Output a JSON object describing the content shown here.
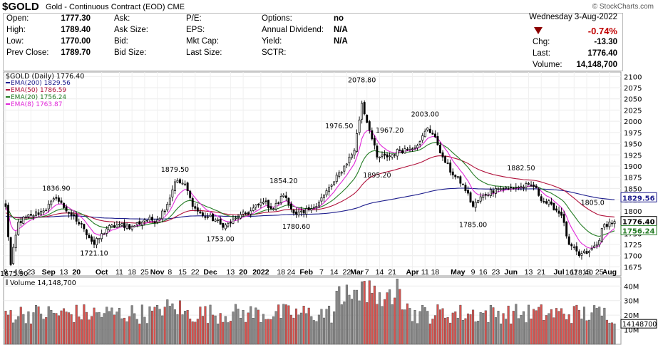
{
  "header": {
    "symbol": "$GOLD",
    "description": "Gold - Continuous Contract (EOD)",
    "exchange": "CME",
    "watermark": "© StockCharts.com",
    "date": "Wednesday  3-Aug-2022"
  },
  "quote": {
    "open_label": "Open:",
    "open": "1777.30",
    "high_label": "High:",
    "high": "1789.40",
    "low_label": "Low:",
    "low": "1770.00",
    "prev_label": "Prev Close:",
    "prev": "1789.70",
    "ask_label": "Ask:",
    "ask": "",
    "asksize_label": "Ask Size:",
    "asksize": "",
    "bid_label": "Bid:",
    "bid": "",
    "bidsize_label": "Bid Size:",
    "bidsize": "",
    "pe_label": "P/E:",
    "pe": "",
    "eps_label": "EPS:",
    "eps": "",
    "mktcap_label": "Mkt Cap:",
    "mktcap": "",
    "lastsize_label": "Last Size:",
    "lastsize": "",
    "options_label": "Options:",
    "options": "no",
    "dividend_label": "Annual Dividend:",
    "dividend": "N/A",
    "yield_label": "Yield:",
    "yield": "N/A",
    "sctr_label": "SCTR:",
    "sctr": "",
    "change_pct": "-0.74%",
    "chg_label": "Chg:",
    "chg": "-13.30",
    "last_label": "Last:",
    "last": "1776.40",
    "volume_label": "Volume:",
    "volume": "14,148,700",
    "direction": "down",
    "down_color": "#8b0000"
  },
  "chart_data": {
    "type": "candlestick",
    "price_legend": "$GOLD (Daily) 1776.40",
    "ema_legend": [
      {
        "label": "EMA(200) 1829.56",
        "color": "#1c1c8c"
      },
      {
        "label": "EMA(50) 1786.59",
        "color": "#b0103a"
      },
      {
        "label": "EMA(20) 1756.24",
        "color": "#247c24"
      },
      {
        "label": "EMA(8) 1763.87",
        "color": "#e028d8"
      }
    ],
    "price_ticks": [
      1675,
      1700,
      1725,
      1750,
      1775,
      1800,
      1825,
      1850,
      1875,
      1900,
      1925,
      1950,
      1975,
      2000,
      2025,
      2050,
      2075,
      2100
    ],
    "ylim": [
      1655,
      2110
    ],
    "axis_tags": [
      {
        "value": "1829.56",
        "price": 1829.56,
        "color": "#1c1c8c"
      },
      {
        "value": "1776.40",
        "price": 1776.4,
        "color": "#000000"
      },
      {
        "value": "1756.24",
        "price": 1756.24,
        "color": "#247c24"
      }
    ],
    "annotations": [
      {
        "text": "1675.90",
        "i": 2,
        "price": 1675.9,
        "pos": "below"
      },
      {
        "text": "1836.90",
        "i": 20,
        "price": 1836.9,
        "pos": "above"
      },
      {
        "text": "1721.10",
        "i": 35,
        "price": 1721.1,
        "pos": "below"
      },
      {
        "text": "1879.50",
        "i": 67,
        "price": 1879.5,
        "pos": "above"
      },
      {
        "text": "1753.00",
        "i": 85,
        "price": 1753.0,
        "pos": "below"
      },
      {
        "text": "1854.20",
        "i": 110,
        "price": 1854.2,
        "pos": "above"
      },
      {
        "text": "1780.60",
        "i": 115,
        "price": 1780.6,
        "pos": "below"
      },
      {
        "text": "1976.50",
        "i": 132,
        "price": 1976.5,
        "pos": "above"
      },
      {
        "text": "2078.80",
        "i": 141,
        "price": 2078.8,
        "pos": "above"
      },
      {
        "text": "1967.20",
        "i": 152,
        "price": 1967.2,
        "pos": "above"
      },
      {
        "text": "1895.20",
        "i": 147,
        "price": 1895.2,
        "pos": "below"
      },
      {
        "text": "2003.00",
        "i": 166,
        "price": 2003.0,
        "pos": "above"
      },
      {
        "text": "1785.00",
        "i": 185,
        "price": 1785.0,
        "pos": "below"
      },
      {
        "text": "1882.50",
        "i": 204,
        "price": 1882.5,
        "pos": "above"
      },
      {
        "text": "1678.40",
        "i": 227,
        "price": 1678.4,
        "pos": "below"
      },
      {
        "text": "1805.0",
        "i": 237,
        "price": 1805.0,
        "pos": "above"
      }
    ],
    "x_labels": [
      {
        "text": "9",
        "i": 0
      },
      {
        "text": "16",
        "i": 5
      },
      {
        "text": "23",
        "i": 10
      },
      {
        "text": "Sep",
        "i": 17
      },
      {
        "text": "13",
        "i": 23
      },
      {
        "text": "20",
        "i": 28
      },
      {
        "text": "Oct",
        "i": 38
      },
      {
        "text": "11",
        "i": 45
      },
      {
        "text": "18",
        "i": 50
      },
      {
        "text": "25",
        "i": 55
      },
      {
        "text": "Nov",
        "i": 60
      },
      {
        "text": "8",
        "i": 65
      },
      {
        "text": "15",
        "i": 70
      },
      {
        "text": "22",
        "i": 75
      },
      {
        "text": "Dec",
        "i": 81
      },
      {
        "text": "13",
        "i": 89
      },
      {
        "text": "20",
        "i": 94
      },
      {
        "text": "2022",
        "i": 101
      },
      {
        "text": "18",
        "i": 109
      },
      {
        "text": "24",
        "i": 113
      },
      {
        "text": "Feb",
        "i": 119
      },
      {
        "text": "7",
        "i": 125
      },
      {
        "text": "14",
        "i": 130
      },
      {
        "text": "22",
        "i": 135
      },
      {
        "text": "Mar",
        "i": 139
      },
      {
        "text": "7",
        "i": 143
      },
      {
        "text": "14",
        "i": 148
      },
      {
        "text": "21",
        "i": 153
      },
      {
        "text": "Apr",
        "i": 161
      },
      {
        "text": "11",
        "i": 166
      },
      {
        "text": "18",
        "i": 170
      },
      {
        "text": "May",
        "i": 179
      },
      {
        "text": "9",
        "i": 185
      },
      {
        "text": "16",
        "i": 189
      },
      {
        "text": "23",
        "i": 194
      },
      {
        "text": "Jun",
        "i": 200
      },
      {
        "text": "13",
        "i": 207
      },
      {
        "text": "21",
        "i": 212
      },
      {
        "text": "Jul",
        "i": 219
      },
      {
        "text": "11",
        "i": 225
      },
      {
        "text": "18",
        "i": 230
      },
      {
        "text": "25",
        "i": 235
      },
      {
        "text": "Aug",
        "i": 239
      }
    ],
    "n_bars": 242,
    "anchors": [
      [
        0,
        1810
      ],
      [
        2,
        1680
      ],
      [
        5,
        1775
      ],
      [
        10,
        1790
      ],
      [
        15,
        1800
      ],
      [
        20,
        1828
      ],
      [
        26,
        1790
      ],
      [
        31,
        1760
      ],
      [
        35,
        1725
      ],
      [
        40,
        1760
      ],
      [
        45,
        1770
      ],
      [
        50,
        1765
      ],
      [
        55,
        1780
      ],
      [
        60,
        1780
      ],
      [
        64,
        1815
      ],
      [
        67,
        1865
      ],
      [
        71,
        1860
      ],
      [
        74,
        1810
      ],
      [
        78,
        1790
      ],
      [
        83,
        1780
      ],
      [
        86,
        1763
      ],
      [
        92,
        1785
      ],
      [
        97,
        1800
      ],
      [
        102,
        1820
      ],
      [
        106,
        1805
      ],
      [
        110,
        1835
      ],
      [
        114,
        1795
      ],
      [
        118,
        1795
      ],
      [
        121,
        1805
      ],
      [
        126,
        1835
      ],
      [
        130,
        1865
      ],
      [
        134,
        1900
      ],
      [
        138,
        1935
      ],
      [
        141,
        2040
      ],
      [
        144,
        1980
      ],
      [
        147,
        1920
      ],
      [
        151,
        1920
      ],
      [
        156,
        1935
      ],
      [
        160,
        1940
      ],
      [
        164,
        1955
      ],
      [
        167,
        1985
      ],
      [
        170,
        1965
      ],
      [
        173,
        1920
      ],
      [
        177,
        1880
      ],
      [
        181,
        1860
      ],
      [
        185,
        1810
      ],
      [
        189,
        1835
      ],
      [
        194,
        1850
      ],
      [
        199,
        1850
      ],
      [
        204,
        1855
      ],
      [
        209,
        1855
      ],
      [
        213,
        1820
      ],
      [
        216,
        1815
      ],
      [
        220,
        1790
      ],
      [
        223,
        1725
      ],
      [
        227,
        1700
      ],
      [
        231,
        1710
      ],
      [
        234,
        1725
      ],
      [
        237,
        1770
      ],
      [
        241,
        1776.4
      ]
    ],
    "volume_legend": "Volume 14,148,700",
    "volume_ticks": [
      "40M",
      "30M",
      "20M",
      "10M"
    ],
    "volume_last_tag": "14148700",
    "ema_periods": [
      200,
      50,
      20,
      8
    ],
    "up_color": "#888888",
    "down_color": "#d9534f",
    "grid": true
  }
}
